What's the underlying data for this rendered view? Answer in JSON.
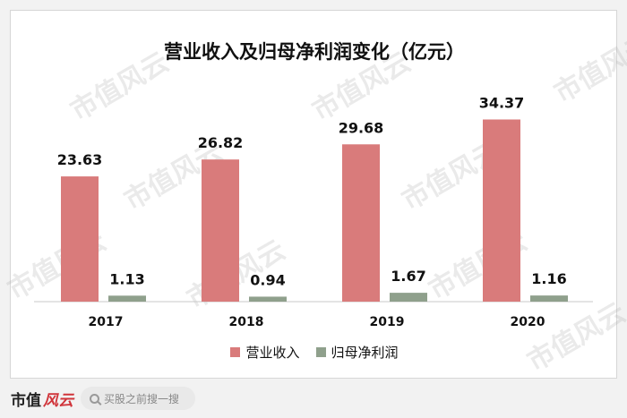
{
  "watermark_text": "市值风云",
  "chart_data": {
    "type": "bar",
    "title": "营业收入及归母净利润变化（亿元）",
    "categories": [
      "2017",
      "2018",
      "2019",
      "2020"
    ],
    "series": [
      {
        "name": "营业收入",
        "values": [
          23.63,
          26.82,
          29.68,
          34.37
        ],
        "color": "#d97b7b"
      },
      {
        "name": "归母净利润",
        "values": [
          1.13,
          0.94,
          1.67,
          1.16
        ],
        "color": "#8fa08c"
      }
    ],
    "value_labels": [
      [
        "23.63",
        "26.82",
        "29.68",
        "34.37"
      ],
      [
        "1.13",
        "0.94",
        "1.67",
        "1.16"
      ]
    ],
    "ylim": [
      0,
      38
    ],
    "grid": false,
    "legend_position": "bottom"
  },
  "footer": {
    "logo_text": "市值",
    "logo_script": "风云",
    "search_placeholder": "买股之前搜一搜"
  }
}
